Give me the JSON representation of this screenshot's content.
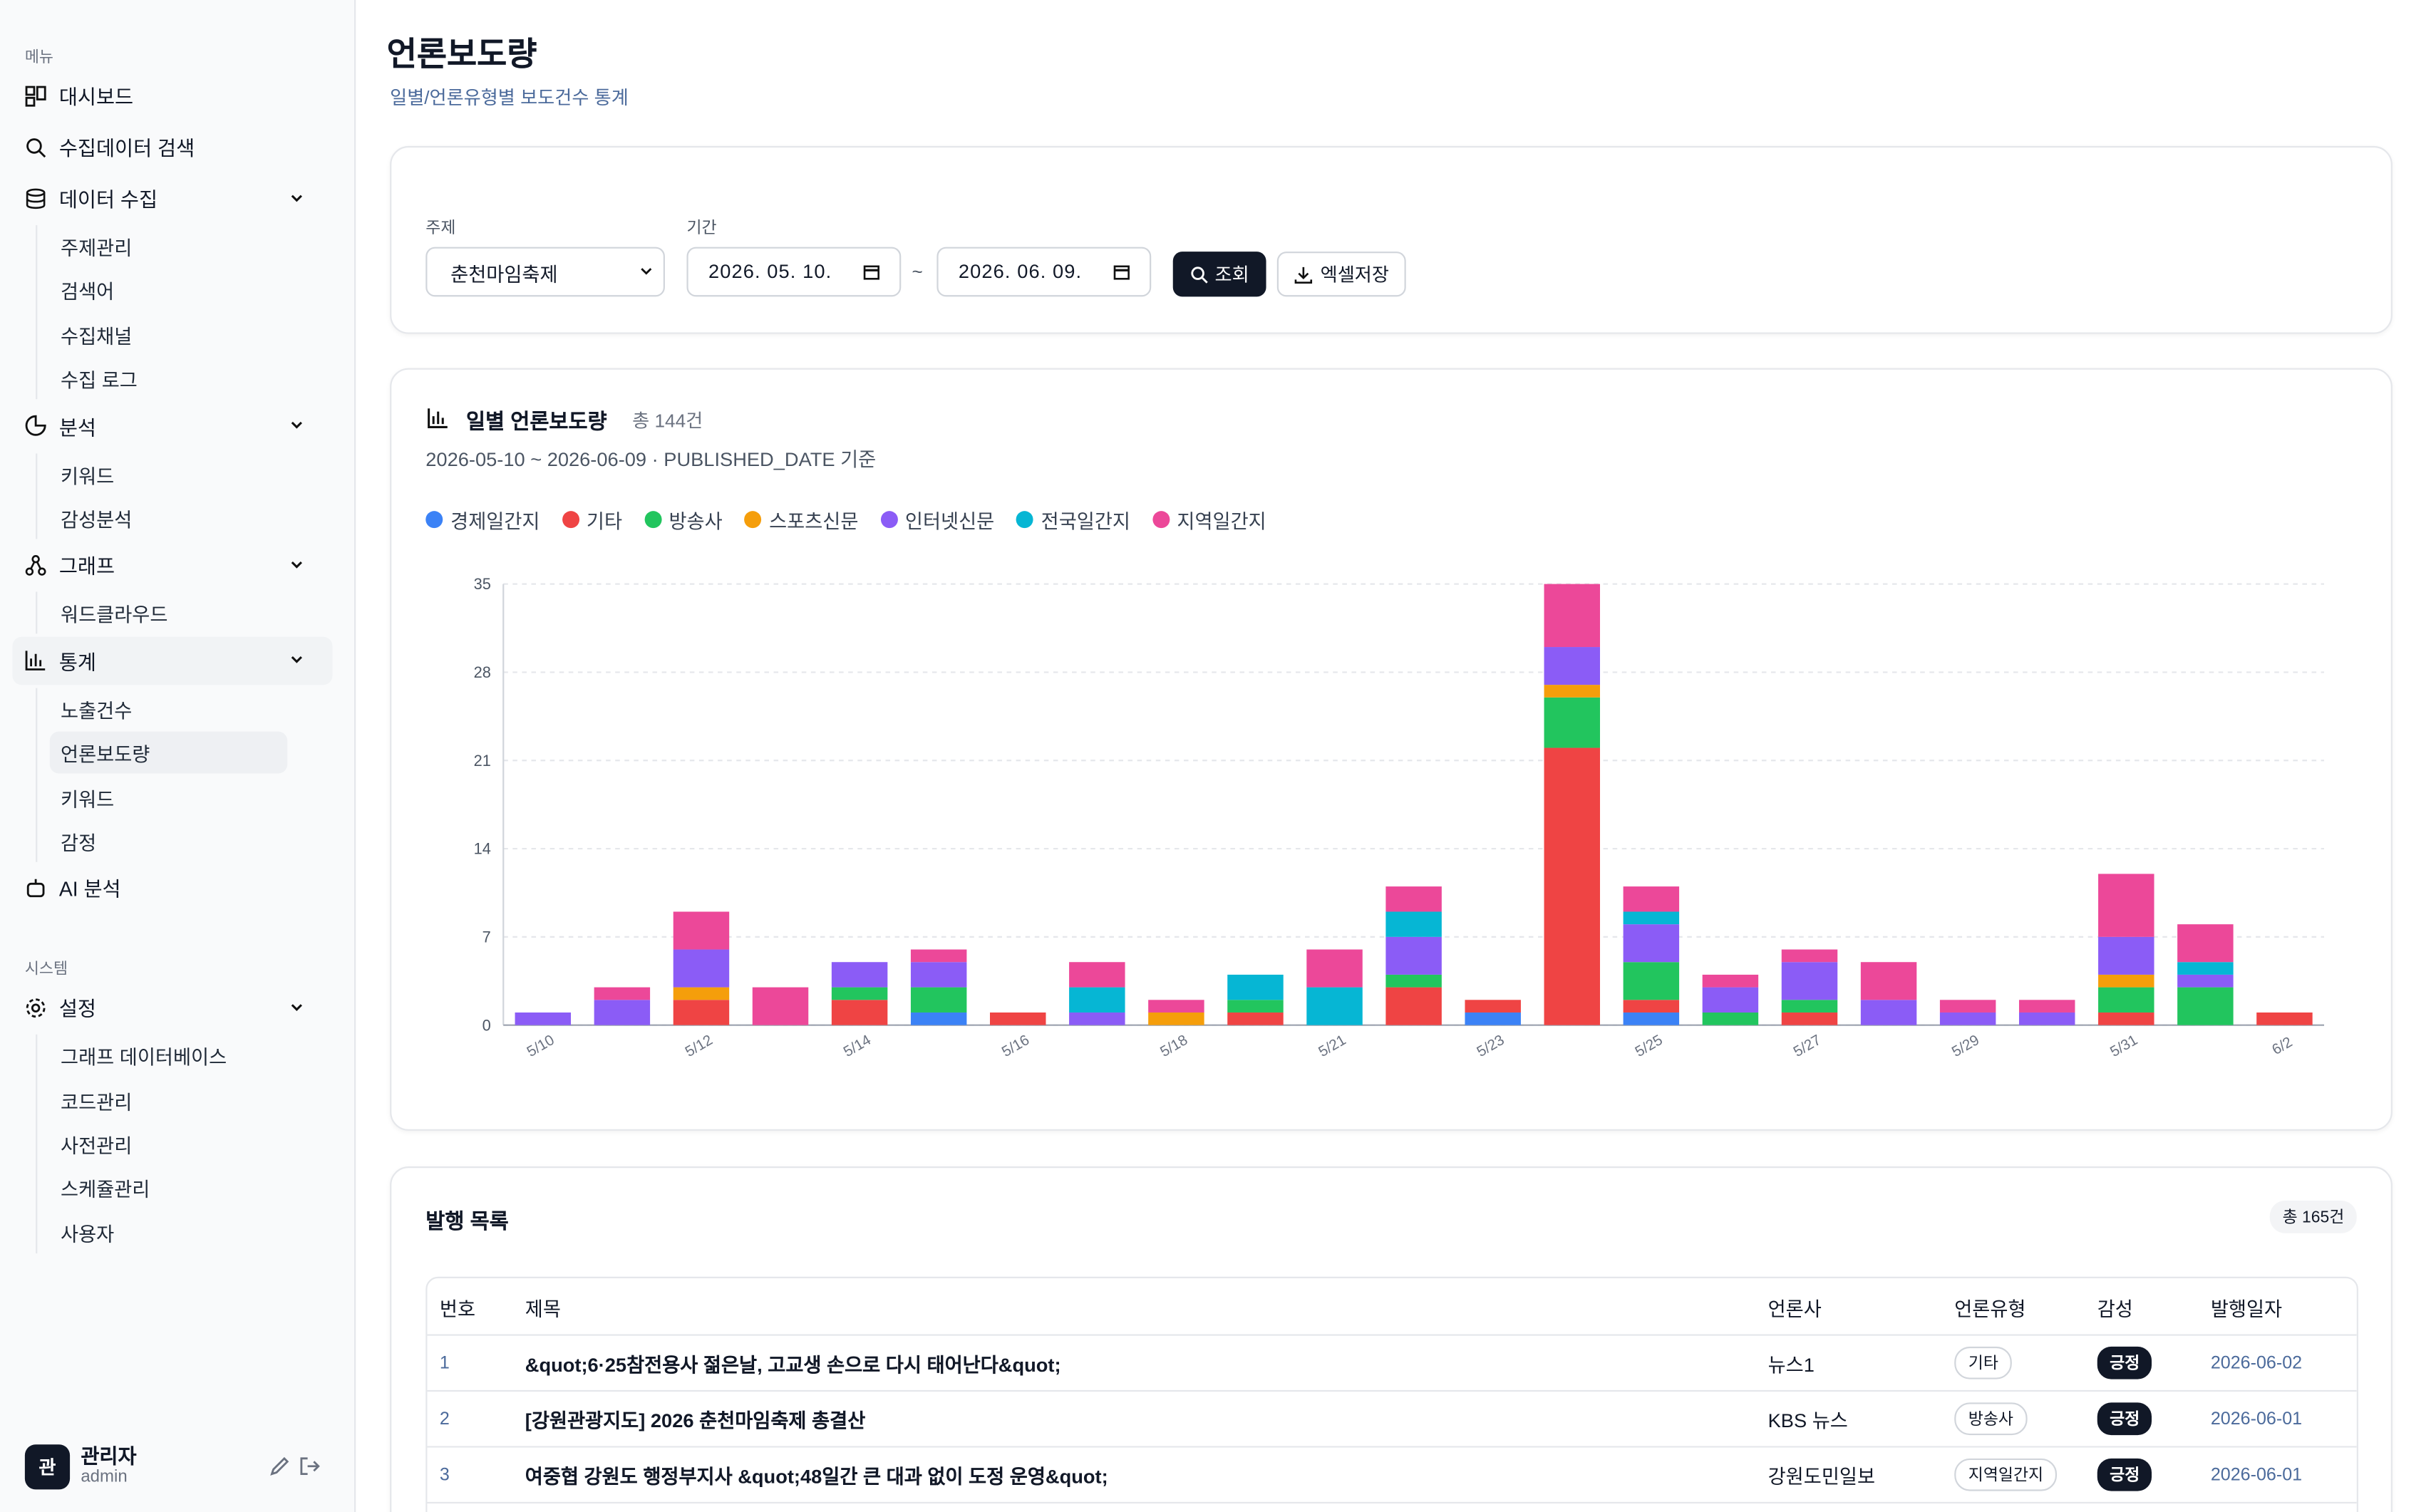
{
  "sidebar": {
    "sections": [
      {
        "title": "메뉴",
        "items": [
          {
            "label": "대시보드"
          },
          {
            "label": "수집데이터 검색"
          },
          {
            "label": "데이터 수집",
            "children": [
              "주제관리",
              "검색어",
              "수집채널",
              "수집 로그"
            ]
          },
          {
            "label": "분석",
            "children": [
              "키워드",
              "감성분석"
            ]
          },
          {
            "label": "그래프",
            "children": [
              "워드클라우드"
            ]
          },
          {
            "label": "통계",
            "children": [
              "노출건수",
              "언론보도량",
              "키워드",
              "감정"
            ]
          },
          {
            "label": "AI 분석"
          }
        ]
      },
      {
        "title": "시스템",
        "items": [
          {
            "label": "설정",
            "children": [
              "그래프 데이터베이스",
              "코드관리",
              "사전관리",
              "스케쥴관리",
              "사용자"
            ]
          }
        ]
      }
    ],
    "user": {
      "avatar": "관",
      "name": "관리자",
      "role": "admin"
    }
  },
  "header": {
    "title": "언론보도량",
    "subtitle": "일별/언론유형별 보도건수 통계"
  },
  "filters": {
    "topic_label": "주제",
    "topic": "춘천마임축제",
    "period_label": "기간",
    "start": "2026. 05. 10.",
    "separator": "~",
    "end": "2026. 06. 09.",
    "search_button": "조회",
    "export_button": "엑셀저장"
  },
  "chart_data": {
    "type": "stacked_bar",
    "title": "일별 언론보도량",
    "total": "총 144건",
    "subtitle": "2026-05-10 ~ 2026-06-09 · PUBLISHED_DATE 기준",
    "categories": [
      "5/10",
      null,
      "5/12",
      null,
      "5/14",
      null,
      "5/16",
      null,
      "5/18",
      null,
      "5/21",
      null,
      "5/23",
      null,
      "5/25",
      null,
      "5/27",
      null,
      "5/29",
      null,
      "5/31",
      null,
      "6/2"
    ],
    "series": [
      {
        "name": "경제일간지",
        "color": "#3b82f6",
        "values": [
          0,
          0,
          0,
          0,
          0,
          1,
          0,
          0,
          0,
          0,
          0,
          0,
          1,
          0,
          1,
          0,
          0,
          0,
          0,
          0,
          0,
          0,
          0
        ]
      },
      {
        "name": "기타",
        "color": "#ef4444",
        "values": [
          0,
          0,
          2,
          0,
          2,
          0,
          1,
          0,
          0,
          1,
          0,
          3,
          1,
          22,
          1,
          0,
          1,
          0,
          0,
          0,
          1,
          0,
          1
        ]
      },
      {
        "name": "방송사",
        "color": "#22c55e",
        "values": [
          0,
          0,
          0,
          0,
          1,
          2,
          0,
          0,
          0,
          1,
          0,
          1,
          0,
          4,
          3,
          1,
          1,
          0,
          0,
          0,
          2,
          3,
          0
        ]
      },
      {
        "name": "스포츠신문",
        "color": "#f59e0b",
        "values": [
          0,
          0,
          1,
          0,
          0,
          0,
          0,
          0,
          1,
          0,
          0,
          0,
          0,
          1,
          0,
          0,
          0,
          0,
          0,
          0,
          1,
          0,
          0
        ]
      },
      {
        "name": "인터넷신문",
        "color": "#8b5cf6",
        "values": [
          1,
          2,
          3,
          0,
          2,
          2,
          0,
          1,
          0,
          0,
          0,
          3,
          0,
          3,
          3,
          2,
          3,
          2,
          1,
          1,
          3,
          1,
          0
        ]
      },
      {
        "name": "전국일간지",
        "color": "#06b6d4",
        "values": [
          0,
          0,
          0,
          0,
          0,
          0,
          0,
          2,
          0,
          2,
          3,
          2,
          0,
          0,
          1,
          0,
          0,
          0,
          0,
          0,
          0,
          1,
          0
        ]
      },
      {
        "name": "지역일간지",
        "color": "#ec4899",
        "values": [
          0,
          1,
          3,
          3,
          0,
          1,
          0,
          2,
          1,
          0,
          3,
          2,
          0,
          5,
          2,
          1,
          1,
          3,
          1,
          1,
          5,
          3,
          0
        ]
      }
    ],
    "ylim": [
      0,
      35
    ],
    "yticks": [
      0,
      7,
      14,
      21,
      28,
      35
    ],
    "grid": true
  },
  "table": {
    "title": "발행 목록",
    "total": "총 165건",
    "headers": [
      "번호",
      "제목",
      "언론사",
      "언론유형",
      "감성",
      "발행일자"
    ],
    "rows": [
      [
        "1",
        "&quot;6·25참전용사 젊은날, 고교생 손으로 다시 태어난다&quot;",
        "뉴스1",
        "기타",
        "긍정",
        "2026-06-02"
      ],
      [
        "2",
        "[강원관광지도] 2026 춘천마임축제 총결산",
        "KBS 뉴스",
        "방송사",
        "긍정",
        "2026-06-01"
      ],
      [
        "3",
        "여중협 강원도 행정부지사 &quot;48일간 큰 대과 없이 도정 운영&quot;",
        "강원도민일보",
        "지역일간지",
        "긍정",
        "2026-06-01"
      ]
    ]
  }
}
